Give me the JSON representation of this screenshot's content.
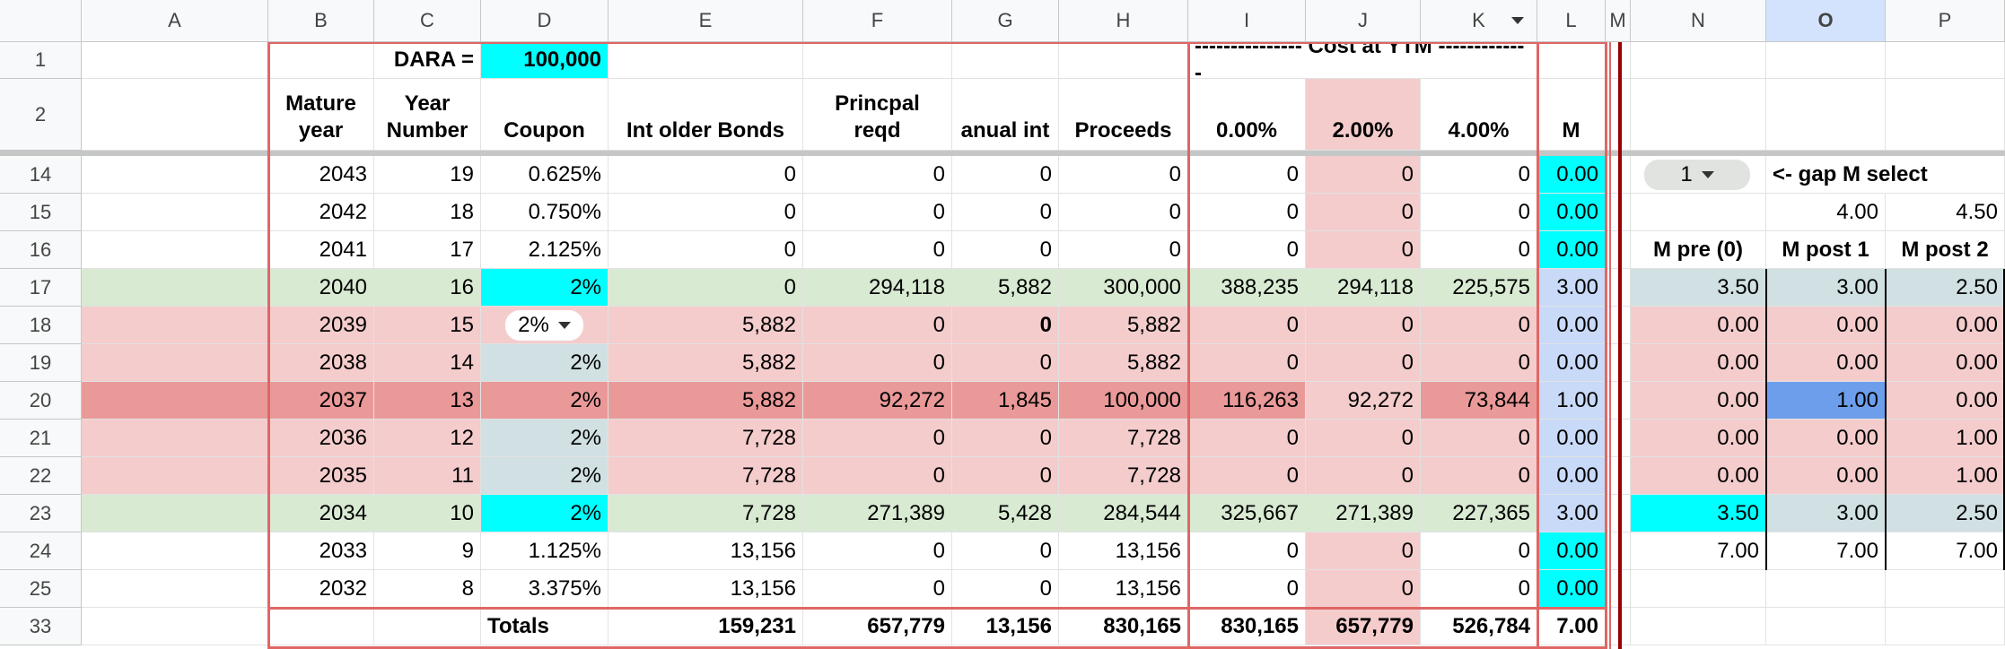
{
  "columns": [
    "A",
    "B",
    "C",
    "D",
    "E",
    "F",
    "G",
    "H",
    "I",
    "J",
    "K",
    "L",
    "M",
    "N",
    "O",
    "P"
  ],
  "row_numbers": [
    "1",
    "2",
    "14",
    "15",
    "16",
    "17",
    "18",
    "19",
    "20",
    "21",
    "22",
    "23",
    "24",
    "25",
    "33"
  ],
  "rows": [
    [
      null,
      null,
      "DARA =",
      "100,000",
      null,
      null,
      null,
      null,
      "--------------- Cost at YTM -------------",
      null,
      null,
      null,
      null,
      null,
      null,
      null
    ],
    [
      null,
      "Mature year",
      "Year Number",
      "Coupon",
      "Int older Bonds",
      "Princpal reqd",
      "anual int",
      "Proceeds",
      "0.00%",
      "2.00%",
      "4.00%",
      "M",
      null,
      null,
      null,
      null
    ],
    [
      null,
      "2043",
      "19",
      "0.625%",
      "0",
      "0",
      "0",
      "0",
      "0",
      "0",
      "0",
      "0.00",
      null,
      "1",
      "<- gap M select",
      null
    ],
    [
      null,
      "2042",
      "18",
      "0.750%",
      "0",
      "0",
      "0",
      "0",
      "0",
      "0",
      "0",
      "0.00",
      null,
      null,
      "4.00",
      "4.50"
    ],
    [
      null,
      "2041",
      "17",
      "2.125%",
      "0",
      "0",
      "0",
      "0",
      "0",
      "0",
      "0",
      "0.00",
      null,
      "M pre (0)",
      "M post 1",
      "M post 2"
    ],
    [
      null,
      "2040",
      "16",
      "2%",
      "0",
      "294,118",
      "5,882",
      "300,000",
      "388,235",
      "294,118",
      "225,575",
      "3.00",
      null,
      "3.50",
      "3.00",
      "2.50"
    ],
    [
      null,
      "2039",
      "15",
      "2%",
      "5,882",
      "0",
      "0",
      "5,882",
      "0",
      "0",
      "0",
      "0.00",
      null,
      "0.00",
      "0.00",
      "0.00"
    ],
    [
      null,
      "2038",
      "14",
      "2%",
      "5,882",
      "0",
      "0",
      "5,882",
      "0",
      "0",
      "0",
      "0.00",
      null,
      "0.00",
      "0.00",
      "0.00"
    ],
    [
      null,
      "2037",
      "13",
      "2%",
      "5,882",
      "92,272",
      "1,845",
      "100,000",
      "116,263",
      "92,272",
      "73,844",
      "1.00",
      null,
      "0.00",
      "1.00",
      "0.00"
    ],
    [
      null,
      "2036",
      "12",
      "2%",
      "7,728",
      "0",
      "0",
      "7,728",
      "0",
      "0",
      "0",
      "0.00",
      null,
      "0.00",
      "0.00",
      "1.00"
    ],
    [
      null,
      "2035",
      "11",
      "2%",
      "7,728",
      "0",
      "0",
      "7,728",
      "0",
      "0",
      "0",
      "0.00",
      null,
      "0.00",
      "0.00",
      "1.00"
    ],
    [
      null,
      "2034",
      "10",
      "2%",
      "7,728",
      "271,389",
      "5,428",
      "284,544",
      "325,667",
      "271,389",
      "227,365",
      "3.00",
      null,
      "3.50",
      "3.00",
      "2.50"
    ],
    [
      null,
      "2033",
      "9",
      "1.125%",
      "13,156",
      "0",
      "0",
      "13,156",
      "0",
      "0",
      "0",
      "0.00",
      null,
      "7.00",
      "7.00",
      "7.00"
    ],
    [
      null,
      "2032",
      "8",
      "3.375%",
      "13,156",
      "0",
      "0",
      "13,156",
      "0",
      "0",
      "0",
      "0.00",
      null,
      null,
      null,
      null
    ],
    [
      null,
      null,
      null,
      "Totals",
      "159,231",
      "657,779",
      "13,156",
      "830,165",
      "830,165",
      "657,779",
      "526,784",
      "7.00",
      null,
      null,
      null,
      null
    ]
  ]
}
